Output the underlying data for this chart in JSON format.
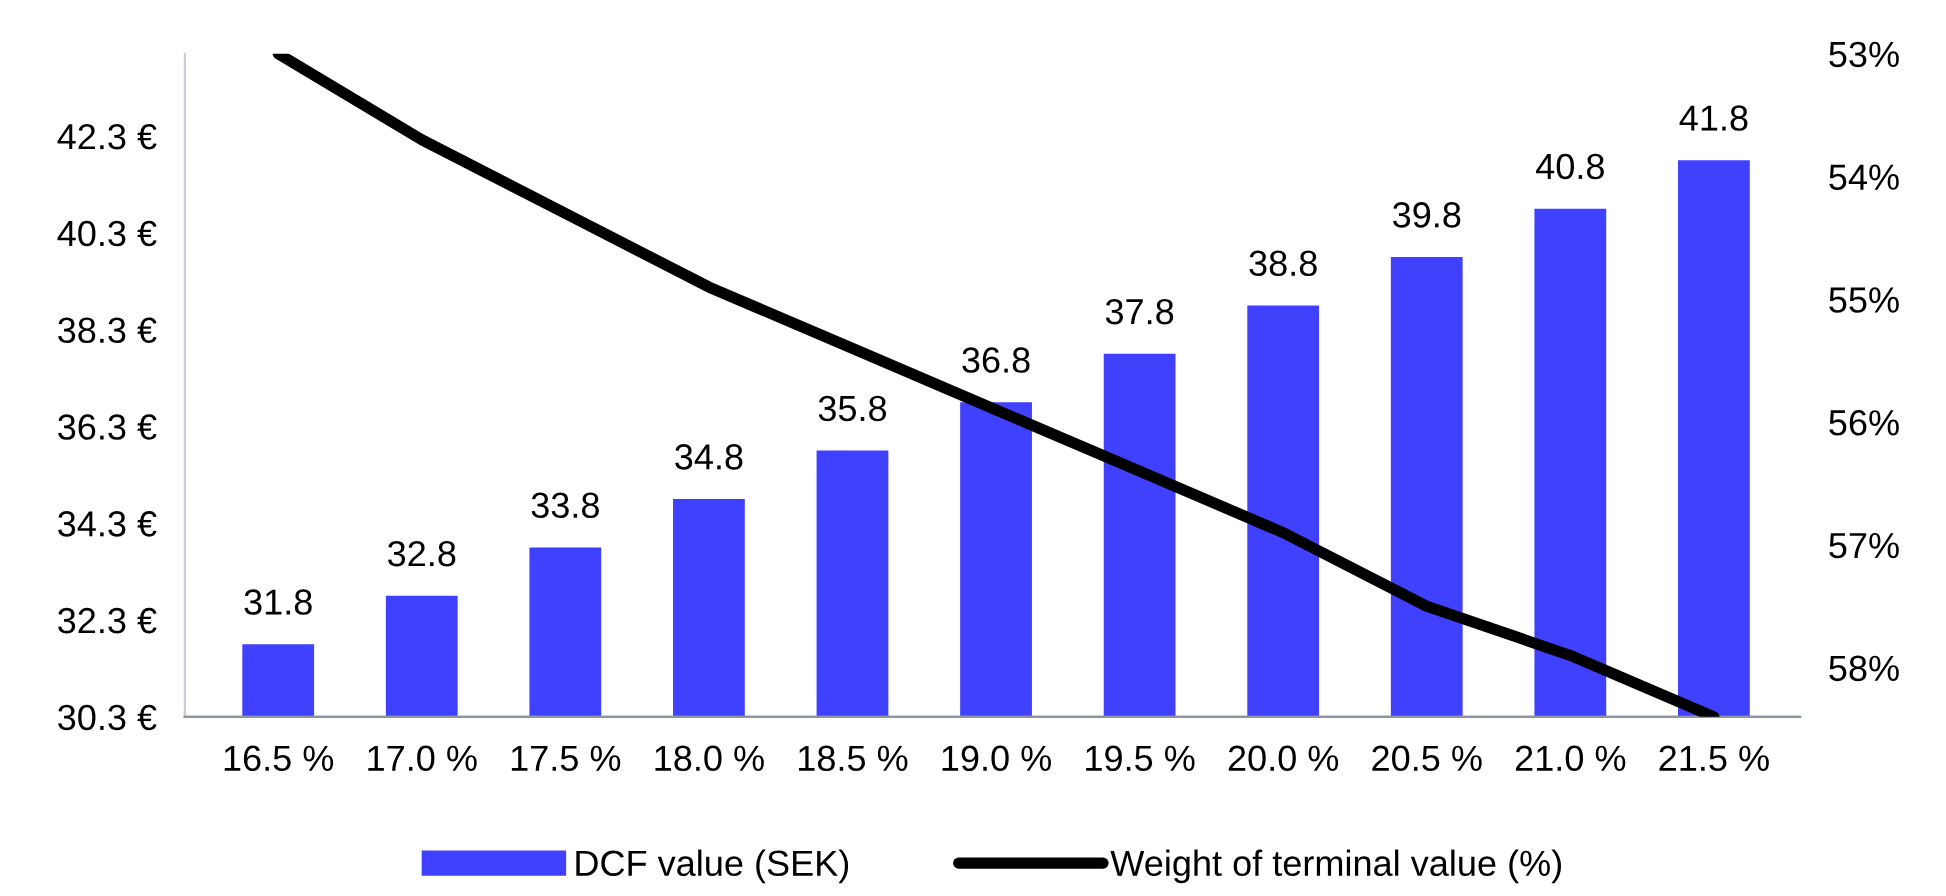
{
  "chart_data": {
    "type": "bar",
    "categories": [
      "16.5 %",
      "17.0 %",
      "17.5 %",
      "18.0 %",
      "18.5 %",
      "19.0 %",
      "19.5 %",
      "20.0 %",
      "20.5 %",
      "21.0 %",
      "21.5 %"
    ],
    "series": [
      {
        "name": "DCF value (SEK)",
        "color": "#4040ff",
        "values": [
          31.8,
          32.8,
          33.8,
          34.8,
          35.8,
          36.8,
          37.8,
          38.8,
          39.8,
          40.8,
          41.8
        ],
        "value_labels": [
          "31.8",
          "32.8",
          "33.8",
          "34.8",
          "35.8",
          "36.8",
          "37.8",
          "38.8",
          "39.8",
          "40.8",
          "41.8"
        ]
      },
      {
        "name": "Weight of terminal value (%)",
        "type": "line",
        "axis": "y2",
        "color": "#000000",
        "values": [
          53.0,
          53.7,
          54.3,
          54.9,
          55.4,
          55.9,
          56.4,
          56.9,
          57.5,
          57.9,
          58.4
        ]
      }
    ],
    "ylim": [
      30.3,
      44.0
    ],
    "yticks": [
      {
        "value": 30.3,
        "label": "30.3 €"
      },
      {
        "value": 32.3,
        "label": "32.3 €"
      },
      {
        "value": 34.3,
        "label": "34.3 €"
      },
      {
        "value": 36.3,
        "label": "36.3 €"
      },
      {
        "value": 38.3,
        "label": "38.3 €"
      },
      {
        "value": 40.3,
        "label": "40.3 €"
      },
      {
        "value": 42.3,
        "label": "42.3 €"
      }
    ],
    "y2lim": [
      58.4,
      53.0
    ],
    "y2ticks": [
      {
        "value": 53,
        "label": "53%"
      },
      {
        "value": 54,
        "label": "54%"
      },
      {
        "value": 55,
        "label": "55%"
      },
      {
        "value": 56,
        "label": "56%"
      },
      {
        "value": 57,
        "label": "57%"
      },
      {
        "value": 58,
        "label": "58%"
      }
    ],
    "grid": false,
    "legend": "bottom",
    "marker": "none",
    "line_style": "solid"
  }
}
